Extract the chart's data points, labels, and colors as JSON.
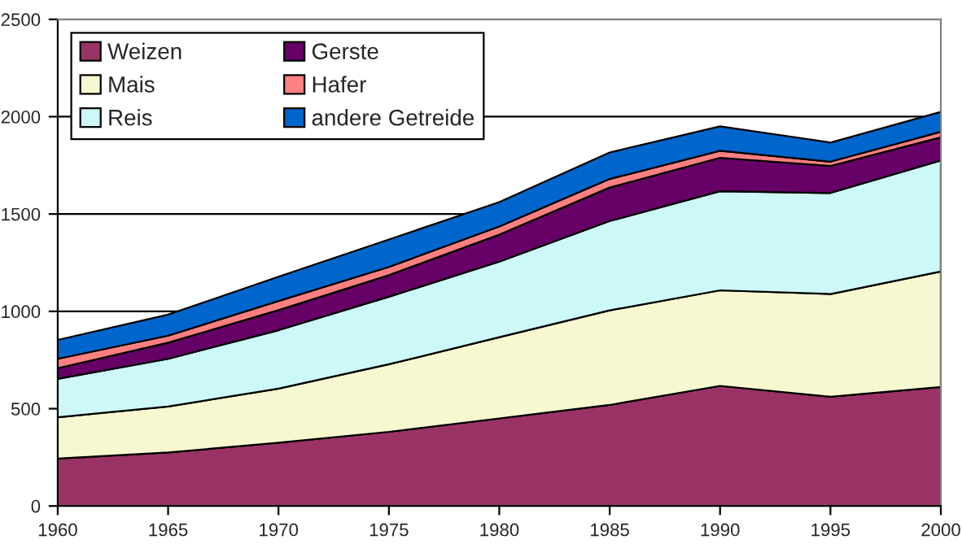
{
  "chart_data": {
    "type": "area",
    "stacked": true,
    "x": [
      1960,
      1965,
      1970,
      1975,
      1980,
      1985,
      1990,
      1995,
      2000
    ],
    "series": [
      {
        "name": "Weizen",
        "color": "#993366",
        "values": [
          244,
          275,
          325,
          381,
          450,
          519,
          617,
          561,
          611
        ]
      },
      {
        "name": "Mais",
        "color": "#f8f8d0",
        "values": [
          212,
          236,
          278,
          347,
          417,
          486,
          491,
          528,
          594
        ]
      },
      {
        "name": "Reis",
        "color": "#ccf8f8",
        "values": [
          197,
          245,
          300,
          347,
          388,
          459,
          509,
          519,
          570
        ]
      },
      {
        "name": "Gerste",
        "color": "#660066",
        "values": [
          55,
          83,
          103,
          111,
          139,
          172,
          172,
          139,
          119
        ]
      },
      {
        "name": "Hafer",
        "color": "#ff8080",
        "values": [
          48,
          36,
          47,
          42,
          42,
          44,
          36,
          22,
          28
        ]
      },
      {
        "name": "andere Getreide",
        "color": "#0066cc",
        "values": [
          97,
          108,
          125,
          141,
          125,
          136,
          125,
          98,
          103
        ]
      }
    ],
    "xlim": [
      1960,
      2000
    ],
    "xticks": [
      1960,
      1965,
      1970,
      1975,
      1980,
      1985,
      1990,
      1995,
      2000
    ],
    "ylim": [
      0,
      2500
    ],
    "yticks": [
      0,
      500,
      1000,
      1500,
      2000,
      2500
    ],
    "grid": "y",
    "legend": "top left"
  }
}
